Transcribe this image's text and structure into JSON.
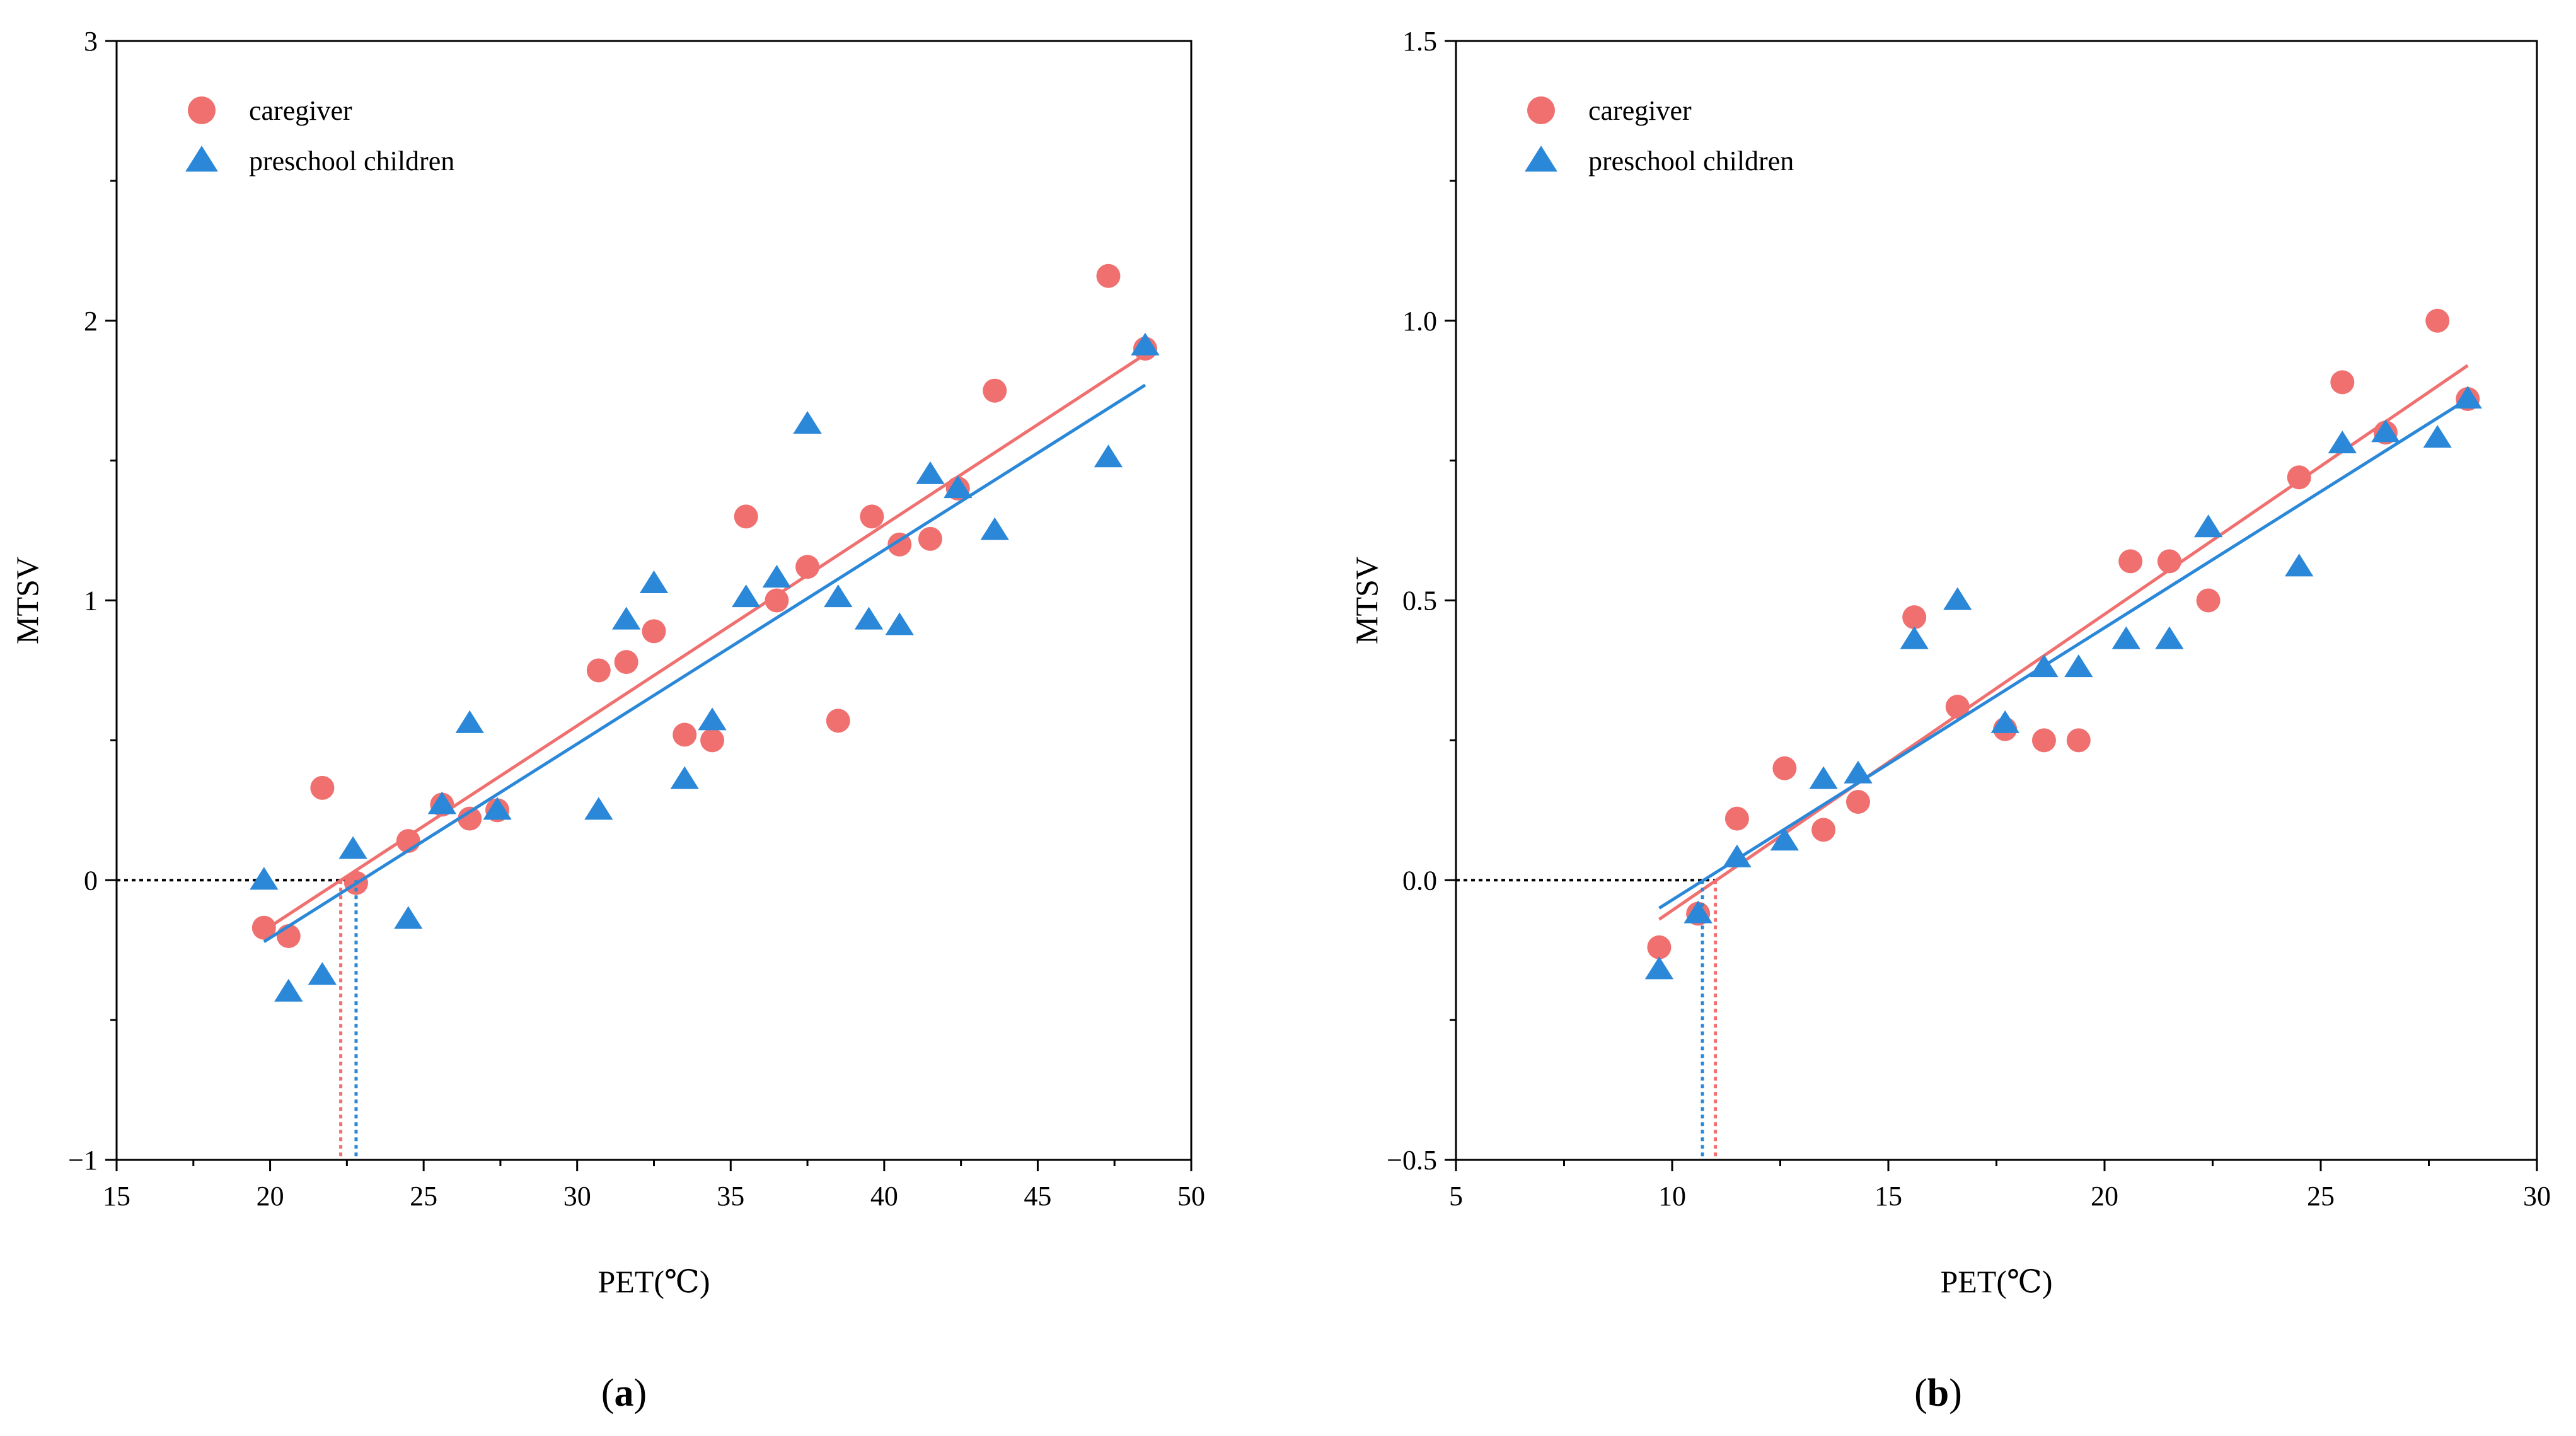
{
  "colors": {
    "caregiver": "#F07070",
    "children": "#2B88D8",
    "axis": "#000000"
  },
  "chart_data": [
    {
      "panel": "(a)",
      "panel_letter": "a",
      "type": "scatter",
      "xlabel": "PET(℃)",
      "ylabel": "MTSV",
      "xlim": [
        15,
        50
      ],
      "ylim": [
        -1,
        3
      ],
      "xticks": [
        15,
        20,
        25,
        30,
        35,
        40,
        45,
        50
      ],
      "yticks": [
        -1,
        0,
        1,
        2,
        3
      ],
      "xtick_labels": [
        "15",
        "20",
        "25",
        "30",
        "35",
        "40",
        "45",
        "50"
      ],
      "ytick_labels": [
        "−1",
        "0",
        "1",
        "2",
        "3"
      ],
      "legend_position": "top-left",
      "series": [
        {
          "name": "caregiver",
          "marker": "circle",
          "points": [
            [
              19.8,
              -0.17
            ],
            [
              20.6,
              -0.2
            ],
            [
              21.7,
              0.33
            ],
            [
              22.8,
              -0.01
            ],
            [
              24.5,
              0.14
            ],
            [
              25.6,
              0.27
            ],
            [
              26.5,
              0.22
            ],
            [
              27.4,
              0.25
            ],
            [
              30.7,
              0.75
            ],
            [
              31.6,
              0.78
            ],
            [
              32.5,
              0.89
            ],
            [
              33.5,
              0.52
            ],
            [
              34.4,
              0.5
            ],
            [
              35.5,
              1.3
            ],
            [
              36.5,
              1.0
            ],
            [
              37.5,
              1.12
            ],
            [
              38.5,
              0.57
            ],
            [
              39.6,
              1.3
            ],
            [
              40.5,
              1.2
            ],
            [
              41.5,
              1.22
            ],
            [
              42.4,
              1.4
            ],
            [
              43.6,
              1.75
            ],
            [
              47.3,
              2.16
            ],
            [
              48.5,
              1.9
            ]
          ],
          "fit_line": [
            [
              19.8,
              -0.18
            ],
            [
              48.5,
              1.88
            ]
          ],
          "x_intercept": 22.3
        },
        {
          "name": "preschool children",
          "marker": "triangle",
          "points": [
            [
              19.8,
              0.0
            ],
            [
              20.6,
              -0.4
            ],
            [
              21.7,
              -0.34
            ],
            [
              22.7,
              0.11
            ],
            [
              24.5,
              -0.14
            ],
            [
              25.6,
              0.27
            ],
            [
              26.5,
              0.56
            ],
            [
              27.4,
              0.25
            ],
            [
              30.7,
              0.25
            ],
            [
              31.6,
              0.93
            ],
            [
              32.5,
              1.06
            ],
            [
              33.5,
              0.36
            ],
            [
              34.4,
              0.57
            ],
            [
              35.5,
              1.01
            ],
            [
              36.5,
              1.08
            ],
            [
              37.5,
              1.63
            ],
            [
              38.5,
              1.01
            ],
            [
              39.5,
              0.93
            ],
            [
              40.5,
              0.91
            ],
            [
              41.5,
              1.45
            ],
            [
              42.4,
              1.4
            ],
            [
              43.6,
              1.25
            ],
            [
              47.3,
              1.51
            ],
            [
              48.5,
              1.91
            ]
          ],
          "fit_line": [
            [
              19.8,
              -0.22
            ],
            [
              48.5,
              1.77
            ]
          ],
          "x_intercept": 22.8
        }
      ]
    },
    {
      "panel": "(b)",
      "panel_letter": "b",
      "type": "scatter",
      "xlabel": "PET(℃)",
      "ylabel": "MTSV",
      "xlim": [
        5,
        30
      ],
      "ylim": [
        -0.5,
        1.5
      ],
      "xticks": [
        5,
        10,
        15,
        20,
        25,
        30
      ],
      "yticks": [
        -0.5,
        0.0,
        0.5,
        1.0,
        1.5
      ],
      "xtick_labels": [
        "5",
        "10",
        "15",
        "20",
        "25",
        "30"
      ],
      "ytick_labels": [
        "−0.5",
        "0.0",
        "0.5",
        "1.0",
        "1.5"
      ],
      "legend_position": "top-left",
      "series": [
        {
          "name": "caregiver",
          "marker": "circle",
          "points": [
            [
              9.7,
              -0.12
            ],
            [
              10.6,
              -0.06
            ],
            [
              11.5,
              0.11
            ],
            [
              12.6,
              0.2
            ],
            [
              13.5,
              0.09
            ],
            [
              14.3,
              0.14
            ],
            [
              15.6,
              0.47
            ],
            [
              16.6,
              0.31
            ],
            [
              17.7,
              0.27
            ],
            [
              18.6,
              0.25
            ],
            [
              19.4,
              0.25
            ],
            [
              20.6,
              0.57
            ],
            [
              21.5,
              0.57
            ],
            [
              22.4,
              0.5
            ],
            [
              24.5,
              0.72
            ],
            [
              25.5,
              0.89
            ],
            [
              26.5,
              0.8
            ],
            [
              27.7,
              1.0
            ],
            [
              28.4,
              0.86
            ]
          ],
          "fit_line": [
            [
              9.7,
              -0.07
            ],
            [
              28.4,
              0.92
            ]
          ],
          "x_intercept": 11.0
        },
        {
          "name": "preschool children",
          "marker": "triangle",
          "points": [
            [
              9.7,
              -0.16
            ],
            [
              10.6,
              -0.06
            ],
            [
              11.5,
              0.04
            ],
            [
              12.6,
              0.07
            ],
            [
              13.5,
              0.18
            ],
            [
              14.3,
              0.19
            ],
            [
              15.6,
              0.43
            ],
            [
              16.6,
              0.5
            ],
            [
              17.7,
              0.28
            ],
            [
              18.6,
              0.38
            ],
            [
              19.4,
              0.38
            ],
            [
              20.5,
              0.43
            ],
            [
              21.5,
              0.43
            ],
            [
              22.4,
              0.63
            ],
            [
              24.5,
              0.56
            ],
            [
              25.5,
              0.78
            ],
            [
              26.5,
              0.8
            ],
            [
              27.7,
              0.79
            ],
            [
              28.4,
              0.86
            ]
          ],
          "fit_line": [
            [
              9.7,
              -0.05
            ],
            [
              28.4,
              0.86
            ]
          ],
          "x_intercept": 10.7
        }
      ]
    }
  ]
}
